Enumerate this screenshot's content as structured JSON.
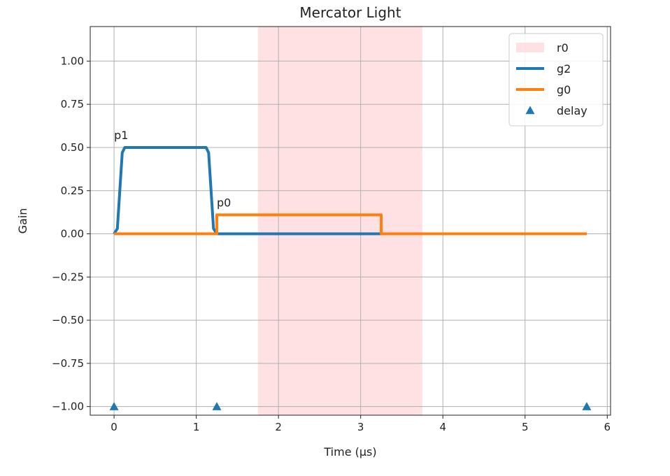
{
  "chart_data": {
    "type": "line",
    "title": "Mercator Light",
    "xlabel": "Time (µs)",
    "ylabel": "Gain",
    "xlim": [
      -0.29,
      6.04
    ],
    "ylim": [
      -1.05,
      1.2
    ],
    "xticks": [
      0,
      1,
      2,
      3,
      4,
      5,
      6
    ],
    "xtick_labels": [
      "0",
      "1",
      "2",
      "3",
      "4",
      "5",
      "6"
    ],
    "yticks": [
      -1.0,
      -0.75,
      -0.5,
      -0.25,
      0.0,
      0.25,
      0.5,
      0.75,
      1.0
    ],
    "ytick_labels": [
      "−1.00",
      "−0.75",
      "−0.50",
      "−0.25",
      "0.00",
      "0.25",
      "0.50",
      "0.75",
      "1.00"
    ],
    "grid": true,
    "legend_position": "top-right",
    "regions": [
      {
        "name": "r0",
        "x_start": 1.75,
        "x_end": 3.75,
        "color": "#ffd6d9"
      }
    ],
    "series": [
      {
        "name": "g2",
        "color": "#1f77b4",
        "x": [
          0.0,
          0.04,
          0.07,
          0.1,
          0.13,
          1.12,
          1.15,
          1.18,
          1.21,
          1.25,
          5.75
        ],
        "y": [
          0.0,
          0.03,
          0.25,
          0.47,
          0.5,
          0.5,
          0.47,
          0.25,
          0.03,
          0.0,
          0.0
        ]
      },
      {
        "name": "g0",
        "color": "#ff7f0e",
        "x": [
          0.0,
          1.25,
          1.25,
          3.25,
          3.25,
          5.75
        ],
        "y": [
          0.0,
          0.0,
          0.11,
          0.11,
          0.0,
          0.0
        ]
      }
    ],
    "markers": {
      "name": "delay",
      "color": "#1f77b4",
      "shape": "triangle-up",
      "x": [
        0.0,
        1.25,
        5.75
      ],
      "y": [
        -1.0,
        -1.0,
        -1.0
      ]
    },
    "annotations": [
      {
        "text": "p1",
        "x": 0.0,
        "y": 0.5
      },
      {
        "text": "p0",
        "x": 1.25,
        "y": 0.11
      }
    ]
  }
}
